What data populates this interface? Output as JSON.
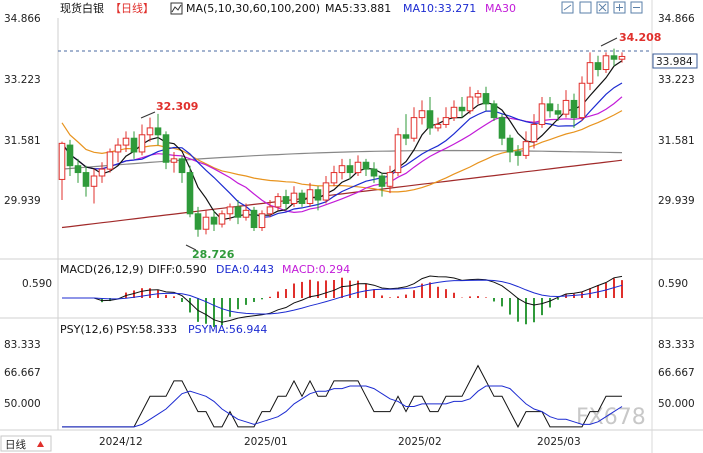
{
  "header": {
    "instrument": "现货白银",
    "period": "【日线】",
    "ma_label": "MA(5,10,30,60,100,200)",
    "ma5": "MA5:33.881",
    "ma10": "MA10:33.271",
    "ma30": "MA30",
    "toolbar_icons": [
      "chart-type-icon",
      "rectangle-icon",
      "maximize-icon",
      "zoom-in-icon",
      "zoom-out-icon",
      "settings-icon"
    ]
  },
  "price_axis": {
    "ticks": [
      "34.866",
      "33.223",
      "31.581",
      "29.939"
    ],
    "current_price": "33.984",
    "max_label": "34.208",
    "peak_label": "32.309",
    "low_label": "28.726"
  },
  "macd": {
    "label": "MACD(26,12,9)",
    "diff": "DIFF:0.590",
    "dea": "DEA:0.443",
    "macd": "MACD:0.294",
    "axis_tick": "0.590"
  },
  "psy": {
    "label": "PSY(12,6)",
    "psy": "PSY:58.333",
    "psyma": "PSYMA:56.944",
    "ticks": [
      "83.333",
      "66.667",
      "50.000"
    ]
  },
  "x_axis": {
    "period_button": "日线",
    "dates": [
      "2024/12",
      "2025/01",
      "2025/02",
      "2025/03"
    ]
  },
  "watermark": "FX678",
  "colors": {
    "up": "#e0302c",
    "down": "#2f9a3a",
    "ma5": "#111111",
    "ma10": "#1c2bd1",
    "ma30": "#c21bd8",
    "ma60": "#e8941f",
    "ma100": "#888888",
    "ma200": "#a12a2a"
  },
  "chart_data": {
    "type": "candlestick",
    "ylim": [
      28.2,
      35.1
    ],
    "candles": [
      [
        30.4,
        31.45,
        29.8,
        31.5
      ],
      [
        31.4,
        30.8,
        30.5,
        31.55
      ],
      [
        30.8,
        30.6,
        30.3,
        31.0
      ],
      [
        30.6,
        30.2,
        29.9,
        30.8
      ],
      [
        30.2,
        30.5,
        29.7,
        30.7
      ],
      [
        30.5,
        30.7,
        30.3,
        30.9
      ],
      [
        30.7,
        31.2,
        30.6,
        31.3
      ],
      [
        31.2,
        31.4,
        30.9,
        31.6
      ],
      [
        31.4,
        31.6,
        31.2,
        31.8
      ],
      [
        31.6,
        31.2,
        31.0,
        31.8
      ],
      [
        31.2,
        31.7,
        31.1,
        32.0
      ],
      [
        31.7,
        31.9,
        31.5,
        32.2
      ],
      [
        31.9,
        31.7,
        31.4,
        32.31
      ],
      [
        31.7,
        30.9,
        30.7,
        31.8
      ],
      [
        30.9,
        31.0,
        30.6,
        31.2
      ],
      [
        31.0,
        30.6,
        30.3,
        31.1
      ],
      [
        30.6,
        29.4,
        29.3,
        30.8
      ],
      [
        29.4,
        28.95,
        28.73,
        29.6
      ],
      [
        28.95,
        29.3,
        28.8,
        29.5
      ],
      [
        29.3,
        29.1,
        28.9,
        29.5
      ],
      [
        29.1,
        29.4,
        29.0,
        29.5
      ],
      [
        29.4,
        29.6,
        29.2,
        29.7
      ],
      [
        29.6,
        29.3,
        29.1,
        29.8
      ],
      [
        29.3,
        29.5,
        29.2,
        29.7
      ],
      [
        29.5,
        29.0,
        28.9,
        29.6
      ],
      [
        29.0,
        29.4,
        28.9,
        29.5
      ],
      [
        29.4,
        29.6,
        29.3,
        29.8
      ],
      [
        29.6,
        29.9,
        29.5,
        30.0
      ],
      [
        29.9,
        29.7,
        29.5,
        30.1
      ],
      [
        29.7,
        30.0,
        29.6,
        30.2
      ],
      [
        30.0,
        29.7,
        29.6,
        30.1
      ],
      [
        29.7,
        30.1,
        29.6,
        30.3
      ],
      [
        30.1,
        29.8,
        29.5,
        30.2
      ],
      [
        29.8,
        30.3,
        29.7,
        30.5
      ],
      [
        30.3,
        30.6,
        30.2,
        30.8
      ],
      [
        30.6,
        30.8,
        30.4,
        31.0
      ],
      [
        30.8,
        30.6,
        30.4,
        31.0
      ],
      [
        30.6,
        30.9,
        30.5,
        31.1
      ],
      [
        30.9,
        30.7,
        30.5,
        31.0
      ],
      [
        30.7,
        30.5,
        30.3,
        30.9
      ],
      [
        30.5,
        30.2,
        29.9,
        30.6
      ],
      [
        30.2,
        30.6,
        30.0,
        30.8
      ],
      [
        30.6,
        31.7,
        30.5,
        31.9
      ],
      [
        31.7,
        31.6,
        31.4,
        32.3
      ],
      [
        31.6,
        32.2,
        31.5,
        32.5
      ],
      [
        32.2,
        32.4,
        32.0,
        32.7
      ],
      [
        32.4,
        31.9,
        31.7,
        32.8
      ],
      [
        31.9,
        32.0,
        31.8,
        32.2
      ],
      [
        32.0,
        32.2,
        31.9,
        32.5
      ],
      [
        32.2,
        32.5,
        32.1,
        32.7
      ],
      [
        32.5,
        32.4,
        32.2,
        32.8
      ],
      [
        32.4,
        32.8,
        32.3,
        33.1
      ],
      [
        32.8,
        32.9,
        32.6,
        33.0
      ],
      [
        32.9,
        32.6,
        32.4,
        33.1
      ],
      [
        32.6,
        32.2,
        32.1,
        32.7
      ],
      [
        32.2,
        31.6,
        31.4,
        32.3
      ],
      [
        31.6,
        31.2,
        30.9,
        31.7
      ],
      [
        31.2,
        31.1,
        30.8,
        31.4
      ],
      [
        31.1,
        31.5,
        31.0,
        31.8
      ],
      [
        31.5,
        32.0,
        31.3,
        32.3
      ],
      [
        32.0,
        32.6,
        31.9,
        32.8
      ],
      [
        32.6,
        32.4,
        32.2,
        32.8
      ],
      [
        32.4,
        32.3,
        32.1,
        32.6
      ],
      [
        32.3,
        32.7,
        32.2,
        33.0
      ],
      [
        32.7,
        32.2,
        31.9,
        32.9
      ],
      [
        32.2,
        33.2,
        32.1,
        33.4
      ],
      [
        33.2,
        33.8,
        33.0,
        34.1
      ],
      [
        33.8,
        33.6,
        33.4,
        34.0
      ],
      [
        33.6,
        34.0,
        33.5,
        34.1
      ],
      [
        34.0,
        33.9,
        33.7,
        34.21
      ],
      [
        33.9,
        33.98,
        33.8,
        34.1
      ]
    ],
    "macd": {
      "diff_end": 0.59,
      "dea_end": 0.443,
      "hist_end": 0.294
    },
    "psy": {
      "psy_end": 58.333,
      "psyma_end": 56.944,
      "ylim": [
        40,
        90
      ]
    },
    "x_tick_labels": [
      "2024/12",
      "2025/01",
      "2025/02",
      "2025/03"
    ]
  }
}
